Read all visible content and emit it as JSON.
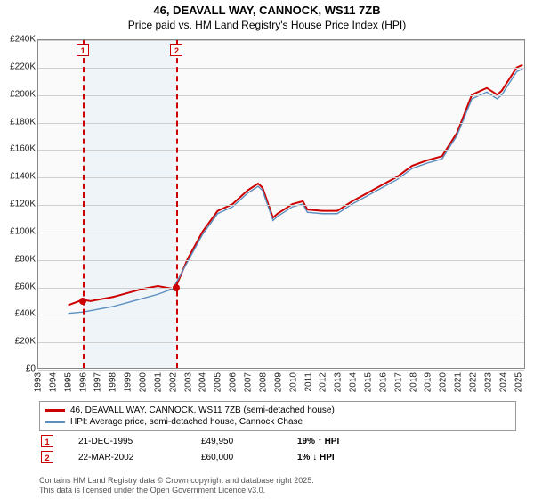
{
  "title_line1": "46, DEAVALL WAY, CANNOCK, WS11 7ZB",
  "title_line2": "Price paid vs. HM Land Registry's House Price Index (HPI)",
  "chart": {
    "type": "line",
    "background_color": "#fafafa",
    "grid_color": "#cfcfcf",
    "plot_border": "#888888",
    "x_years": [
      1993,
      1994,
      1995,
      1996,
      1997,
      1998,
      1999,
      2000,
      2001,
      2002,
      2003,
      2004,
      2005,
      2006,
      2007,
      2008,
      2009,
      2010,
      2011,
      2012,
      2013,
      2014,
      2015,
      2016,
      2017,
      2018,
      2019,
      2020,
      2021,
      2022,
      2023,
      2024,
      2025
    ],
    "xlim": [
      1993,
      2025.5
    ],
    "ylim": [
      0,
      240000
    ],
    "ytick_step": 20000,
    "ytick_labels": [
      "£0",
      "£20K",
      "£40K",
      "£60K",
      "£80K",
      "£100K",
      "£120K",
      "£140K",
      "£160K",
      "£180K",
      "£200K",
      "£220K",
      "£240K"
    ],
    "bands": [
      {
        "from": 1995.97,
        "to": 2002.22,
        "color": "#e6eef5"
      }
    ],
    "series": [
      {
        "name": "price_paid",
        "label": "46, DEAVALL WAY, CANNOCK, WS11 7ZB (semi-detached house)",
        "color": "#cc0000",
        "width": 2,
        "points": [
          [
            1995.0,
            46000
          ],
          [
            1995.97,
            49950
          ],
          [
            1996.5,
            49000
          ],
          [
            1997,
            50000
          ],
          [
            1998,
            52000
          ],
          [
            1999,
            55000
          ],
          [
            2000,
            58000
          ],
          [
            2001,
            60000
          ],
          [
            2002,
            58000
          ],
          [
            2002.22,
            60000
          ],
          [
            2003,
            80000
          ],
          [
            2004,
            100000
          ],
          [
            2005,
            115000
          ],
          [
            2006,
            120000
          ],
          [
            2007,
            130000
          ],
          [
            2007.7,
            135000
          ],
          [
            2008,
            132000
          ],
          [
            2008.7,
            110000
          ],
          [
            2009,
            113000
          ],
          [
            2010,
            120000
          ],
          [
            2010.7,
            122000
          ],
          [
            2011,
            116000
          ],
          [
            2012,
            115000
          ],
          [
            2013,
            115000
          ],
          [
            2014,
            122000
          ],
          [
            2015,
            128000
          ],
          [
            2016,
            134000
          ],
          [
            2017,
            140000
          ],
          [
            2018,
            148000
          ],
          [
            2019,
            152000
          ],
          [
            2020,
            155000
          ],
          [
            2021,
            172000
          ],
          [
            2022,
            200000
          ],
          [
            2023,
            205000
          ],
          [
            2023.7,
            200000
          ],
          [
            2024,
            203000
          ],
          [
            2025,
            220000
          ],
          [
            2025.4,
            222000
          ]
        ]
      },
      {
        "name": "hpi",
        "label": "HPI: Average price, semi-detached house, Cannock Chase",
        "color": "#5b8fbf",
        "width": 1.4,
        "points": [
          [
            1995.0,
            40000
          ],
          [
            1996,
            41000
          ],
          [
            1997,
            43000
          ],
          [
            1998,
            45000
          ],
          [
            1999,
            48000
          ],
          [
            2000,
            51000
          ],
          [
            2001,
            54000
          ],
          [
            2002,
            58000
          ],
          [
            2003,
            78000
          ],
          [
            2004,
            98000
          ],
          [
            2005,
            113000
          ],
          [
            2006,
            118000
          ],
          [
            2007,
            128000
          ],
          [
            2007.7,
            133000
          ],
          [
            2008,
            130000
          ],
          [
            2008.7,
            108000
          ],
          [
            2009,
            111000
          ],
          [
            2010,
            118000
          ],
          [
            2010.7,
            120000
          ],
          [
            2011,
            114000
          ],
          [
            2012,
            113000
          ],
          [
            2013,
            113000
          ],
          [
            2014,
            120000
          ],
          [
            2015,
            126000
          ],
          [
            2016,
            132000
          ],
          [
            2017,
            138000
          ],
          [
            2018,
            146000
          ],
          [
            2019,
            150000
          ],
          [
            2020,
            153000
          ],
          [
            2021,
            170000
          ],
          [
            2022,
            197000
          ],
          [
            2023,
            202000
          ],
          [
            2023.7,
            197000
          ],
          [
            2024,
            200000
          ],
          [
            2025,
            217000
          ],
          [
            2025.4,
            219000
          ]
        ]
      }
    ],
    "markers": [
      {
        "id": "1",
        "x": 1995.97,
        "y": 49950,
        "color": "#cc0000"
      },
      {
        "id": "2",
        "x": 2002.22,
        "y": 60000,
        "color": "#cc0000"
      }
    ]
  },
  "legend": {
    "series1": "46, DEAVALL WAY, CANNOCK, WS11 7ZB (semi-detached house)",
    "series2": "HPI: Average price, semi-detached house, Cannock Chase"
  },
  "transactions": [
    {
      "id": "1",
      "date": "21-DEC-1995",
      "price": "£49,950",
      "delta": "19% ↑ HPI",
      "color": "#cc0000"
    },
    {
      "id": "2",
      "date": "22-MAR-2002",
      "price": "£60,000",
      "delta": "1% ↓ HPI",
      "color": "#cc0000"
    }
  ],
  "footer_line1": "Contains HM Land Registry data © Crown copyright and database right 2025.",
  "footer_line2": "This data is licensed under the Open Government Licence v3.0."
}
